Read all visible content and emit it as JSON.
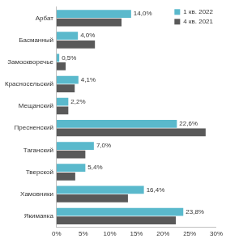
{
  "chart_data": {
    "type": "bar",
    "orientation": "horizontal",
    "categories": [
      "Арбат",
      "Басманный",
      "Замоскворечье",
      "Красносельский",
      "Мещанский",
      "Пресненский",
      "Таганский",
      "Тверской",
      "Хамовники",
      "Якиманка"
    ],
    "series": [
      {
        "name": "1 кв. 2022",
        "color": "#5ab9cc",
        "values": [
          14.0,
          4.0,
          0.5,
          4.1,
          2.2,
          22.6,
          7.0,
          5.4,
          16.4,
          23.8
        ],
        "data_labels": true,
        "value_labels": [
          "14,0%",
          "4,0%",
          "0,5%",
          "4,1%",
          "2,2%",
          "22,6%",
          "7,0%",
          "5,4%",
          "16,4%",
          "23,8%"
        ]
      },
      {
        "name": "4 кв. 2021",
        "color": "#595959",
        "values": [
          12.2,
          7.2,
          1.7,
          3.4,
          2.2,
          28.0,
          5.4,
          3.5,
          13.4,
          22.4
        ]
      }
    ],
    "xlim": [
      0,
      30
    ],
    "xticks": [
      {
        "value": 0,
        "label": "0%"
      },
      {
        "value": 5,
        "label": "5%"
      },
      {
        "value": 10,
        "label": "10%"
      },
      {
        "value": 15,
        "label": "15%"
      },
      {
        "value": 20,
        "label": "20%"
      },
      {
        "value": 25,
        "label": "25%"
      },
      {
        "value": 30,
        "label": "30%"
      }
    ],
    "grid": false,
    "legend": "upper right"
  }
}
